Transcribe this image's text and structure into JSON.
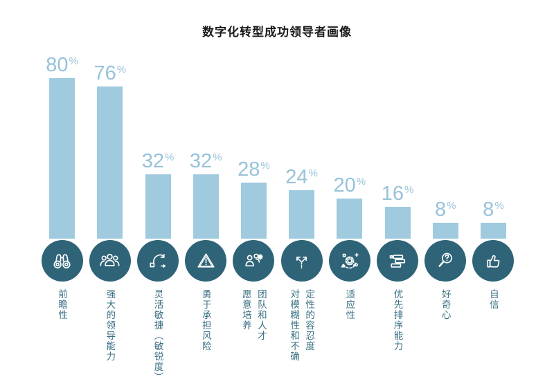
{
  "title": "数字化转型成功领导者画像",
  "colors": {
    "background": "#FFFFFF",
    "title_text": "#1A1A1A",
    "bar": "#A0CADD",
    "value_text": "#97C3D9",
    "icon_circle": "#2F6478",
    "label_text": "#3A7083",
    "icon_stroke": "#FFFFFF"
  },
  "chart_data": {
    "type": "bar",
    "title": "数字化转型成功领导者画像",
    "unit": "%",
    "ylim": [
      0,
      100
    ],
    "grid": false,
    "legend": false,
    "categories": [
      "前瞻性",
      "强大的领导能力",
      "灵活敏捷（敏锐度）",
      "勇于承担风险",
      "愿意培养团队和人才",
      "对模糊性和不确定性的容忍度",
      "适应性",
      "优先排序能力",
      "好奇心",
      "自信"
    ],
    "values": [
      80,
      76,
      32,
      32,
      28,
      24,
      20,
      16,
      8,
      8
    ],
    "items": [
      {
        "value": 80,
        "label": "前瞻性",
        "label_columns": [
          "前瞻性"
        ],
        "icon": "binoculars"
      },
      {
        "value": 76,
        "label": "强大的领导能力",
        "label_columns": [
          "强大的领导能力"
        ],
        "icon": "team"
      },
      {
        "value": 32,
        "label": "灵活敏捷（敏锐度）",
        "label_columns": [
          "灵活敏捷（敏锐度）"
        ],
        "icon": "agile-cycle"
      },
      {
        "value": 32,
        "label": "勇于承担风险",
        "label_columns": [
          "勇于承担风险"
        ],
        "icon": "warning-triangle"
      },
      {
        "value": 28,
        "label": "愿意培养团队和人才",
        "label_columns": [
          "愿意培养",
          "团队和人才"
        ],
        "icon": "talent-development"
      },
      {
        "value": 24,
        "label": "对模糊性和不确定性的容忍度",
        "label_columns": [
          "对模糊性和不确",
          "定性的容忍度"
        ],
        "icon": "branching-arrows"
      },
      {
        "value": 20,
        "label": "适应性",
        "label_columns": [
          "适应性"
        ],
        "icon": "adaptability-gear"
      },
      {
        "value": 16,
        "label": "优先排序能力",
        "label_columns": [
          "优先排序能力"
        ],
        "icon": "priority-list"
      },
      {
        "value": 8,
        "label": "好奇心",
        "label_columns": [
          "好奇心"
        ],
        "icon": "magnifier-question"
      },
      {
        "value": 8,
        "label": "自信",
        "label_columns": [
          "自信"
        ],
        "icon": "thumbs-up"
      }
    ]
  }
}
